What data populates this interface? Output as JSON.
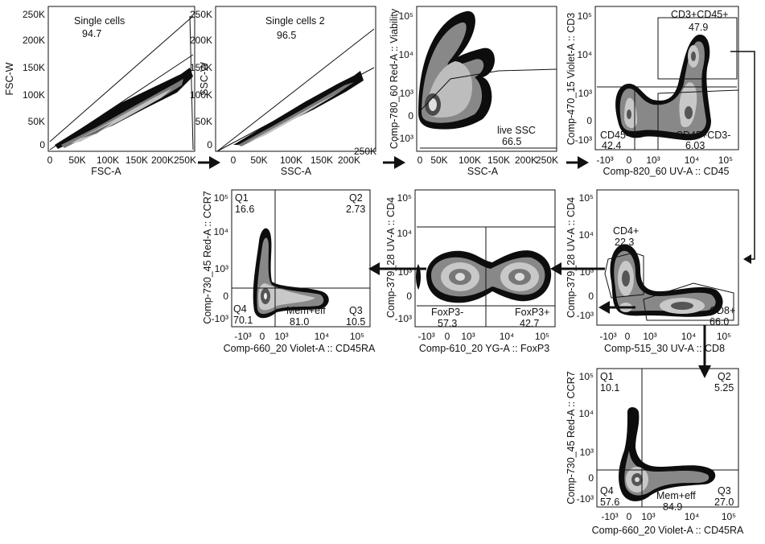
{
  "chart_data": [
    {
      "type": "scatter",
      "id": "p1",
      "xlabel": "FSC-A",
      "ylabel": "FSC-W",
      "xticks": [
        "0",
        "50K",
        "100K",
        "150K",
        "200K",
        "250K"
      ],
      "yticks": [
        "0",
        "50K",
        "100K",
        "150K",
        "200K",
        "250K"
      ],
      "gates": [
        {
          "name": "Single cells",
          "value": "94.7"
        }
      ]
    },
    {
      "type": "scatter",
      "id": "p2",
      "xlabel": "SSC-A",
      "ylabel": "SSC-W",
      "xticks": [
        "0",
        "50K",
        "100K",
        "150K",
        "200K",
        "250K"
      ],
      "yticks": [
        "0",
        "50K",
        "100K",
        "150K",
        "200K",
        "250K"
      ],
      "gates": [
        {
          "name": "Single cells 2",
          "value": "96.5"
        }
      ]
    },
    {
      "type": "scatter",
      "id": "p3",
      "xlabel": "SSC-A",
      "ylabel": "Comp-780_60 Red-A :: Viability",
      "xticks": [
        "0",
        "50K",
        "100K",
        "150K",
        "200K",
        "250K"
      ],
      "yticks": [
        "-10³",
        "0",
        "10³",
        "10⁴",
        "10⁵"
      ],
      "gates": [
        {
          "name": "live SSC",
          "value": "66.5"
        }
      ]
    },
    {
      "type": "scatter",
      "id": "p4",
      "xlabel": "Comp-820_60 UV-A :: CD45",
      "ylabel": "Comp-470_15 Violet-A :: CD3",
      "xticks": [
        "-10³",
        "0",
        "10³",
        "10⁴",
        "10⁵"
      ],
      "yticks": [
        "-10³",
        "0",
        "10³",
        "10⁴",
        "10⁵"
      ],
      "gates": [
        {
          "name": "CD3+CD45+",
          "value": "47.9"
        },
        {
          "name": "CD45-",
          "value": "42.4"
        },
        {
          "name": "CD45+CD3-",
          "value": "6.03"
        }
      ]
    },
    {
      "type": "scatter",
      "id": "p5",
      "xlabel": "Comp-660_20 Violet-A :: CD45RA",
      "ylabel": "Comp-730_45 Red-A :: CCR7",
      "xticks": [
        "-10³",
        "0",
        "10³",
        "10⁴",
        "10⁵"
      ],
      "yticks": [
        "-10³",
        "0",
        "10³",
        "10⁴",
        "10⁵"
      ],
      "gates": [
        {
          "name": "Q1",
          "value": "16.6"
        },
        {
          "name": "Q2",
          "value": "2.73"
        },
        {
          "name": "Q4",
          "value": "70.1"
        },
        {
          "name": "Mem+eff",
          "value": "81.0"
        },
        {
          "name": "Q3",
          "value": "10.5"
        }
      ]
    },
    {
      "type": "scatter",
      "id": "p6",
      "xlabel": "Comp-610_20 YG-A :: FoxP3",
      "ylabel": "Comp-379_28 UV-A :: CD4",
      "xticks": [
        "-10³",
        "0",
        "10³",
        "10⁴",
        "10⁵"
      ],
      "yticks": [
        "-10³",
        "0",
        "10³",
        "10⁴",
        "10⁵"
      ],
      "gates": [
        {
          "name": "FoxP3-",
          "value": "57.3"
        },
        {
          "name": "FoxP3+",
          "value": "42.7"
        }
      ]
    },
    {
      "type": "scatter",
      "id": "p7",
      "xlabel": "Comp-515_30 UV-A :: CD8",
      "ylabel": "Comp-379_28 UV-A :: CD4",
      "xticks": [
        "-10³",
        "0",
        "10³",
        "10⁴",
        "10⁵"
      ],
      "yticks": [
        "-10³",
        "0",
        "10³",
        "10⁴",
        "10⁵"
      ],
      "gates": [
        {
          "name": "CD4+",
          "value": "22.3"
        },
        {
          "name": "CD8+",
          "value": "66.0"
        }
      ]
    },
    {
      "type": "scatter",
      "id": "p8",
      "xlabel": "Comp-660_20 Violet-A :: CD45RA",
      "ylabel": "Comp-730_45 Red-A :: CCR7",
      "xticks": [
        "-10³",
        "0",
        "10³",
        "10⁴",
        "10⁵"
      ],
      "yticks": [
        "-10³",
        "0",
        "10³",
        "10⁴",
        "10⁵"
      ],
      "gates": [
        {
          "name": "Q1",
          "value": "10.1"
        },
        {
          "name": "Q2",
          "value": "5.25"
        },
        {
          "name": "Q4",
          "value": "57.6"
        },
        {
          "name": "Mem+eff",
          "value": "84.9"
        },
        {
          "name": "Q3",
          "value": "27.0"
        }
      ]
    }
  ]
}
